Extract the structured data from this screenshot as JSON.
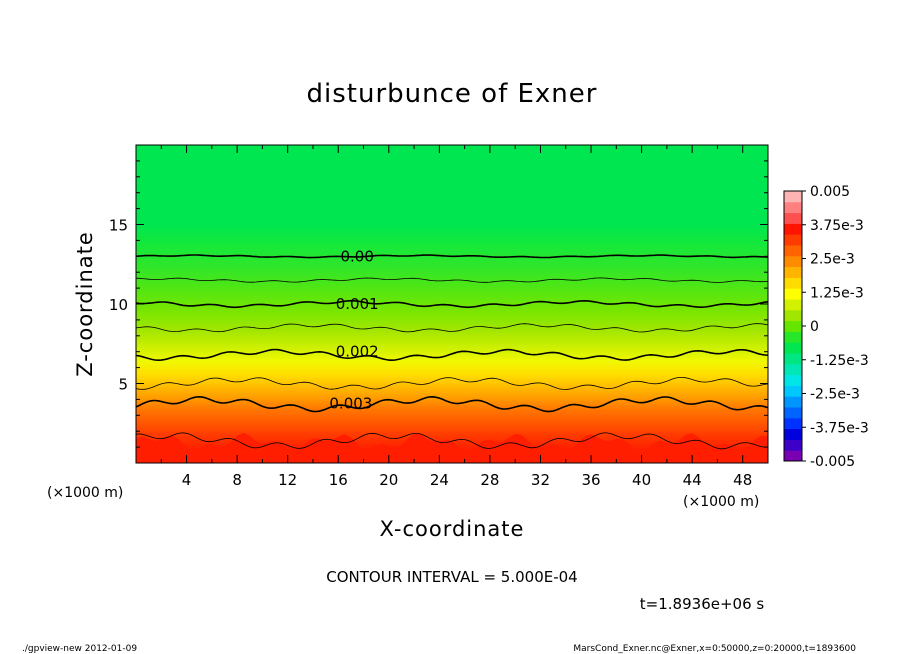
{
  "chart_data": {
    "type": "heatmap",
    "title": "disturbunce of Exner",
    "xlabel": "X-coordinate",
    "ylabel": "Z-coordinate",
    "x_unit_left": "(×1000 m)",
    "x_unit_right": "(×1000 m)",
    "xlim": [
      0,
      50
    ],
    "ylim": [
      0,
      20
    ],
    "x_ticks": [
      4,
      8,
      12,
      16,
      20,
      24,
      28,
      32,
      36,
      40,
      44,
      48
    ],
    "y_ticks": [
      5,
      10,
      15
    ],
    "contour_interval_text": "CONTOUR INTERVAL = 5.000E-04",
    "time_text": "t=1.8936e+06 s",
    "contour_labels": [
      {
        "text": "0.00",
        "x": 17.5,
        "z": 13.0
      },
      {
        "text": "0.001",
        "x": 17.5,
        "z": 10.0
      },
      {
        "text": "0.002",
        "x": 17.5,
        "z": 7.0
      },
      {
        "text": "0.003",
        "x": 17.0,
        "z": 3.75
      }
    ],
    "contour_levels": [
      {
        "value": 0.0,
        "z": 13.0
      },
      {
        "value": 0.0005,
        "z": 11.5
      },
      {
        "value": 0.001,
        "z": 10.0
      },
      {
        "value": 0.0015,
        "z": 8.5
      },
      {
        "value": 0.002,
        "z": 6.8
      },
      {
        "value": 0.0025,
        "z": 5.0
      },
      {
        "value": 0.003,
        "z": 3.7
      },
      {
        "value": 0.0035,
        "z": 1.4
      }
    ],
    "colorbar": {
      "range": [
        -0.005,
        0.005
      ],
      "labels": [
        "0.005",
        "3.75e-3",
        "2.5e-3",
        "1.25e-3",
        "0",
        "-1.25e-3",
        "-2.5e-3",
        "-3.75e-3",
        "-0.005"
      ],
      "colors": [
        "#7a00b4",
        "#3c00c8",
        "#0000dc",
        "#0032ff",
        "#0064ff",
        "#0096ff",
        "#00c8ff",
        "#00e6e6",
        "#00e6b4",
        "#00e682",
        "#00e650",
        "#28e628",
        "#64e600",
        "#a0e600",
        "#d2f000",
        "#ffff00",
        "#ffdc00",
        "#ffb400",
        "#ff8c00",
        "#ff6400",
        "#ff3c00",
        "#ff1400",
        "#ff5050",
        "#ff8080",
        "#ffb4b4"
      ]
    }
  },
  "footer": {
    "left": "./gpview-new   2012-01-09",
    "right": "MarsCond_Exner.nc@Exner,x=0:50000,z=0:20000,t=1893600"
  }
}
